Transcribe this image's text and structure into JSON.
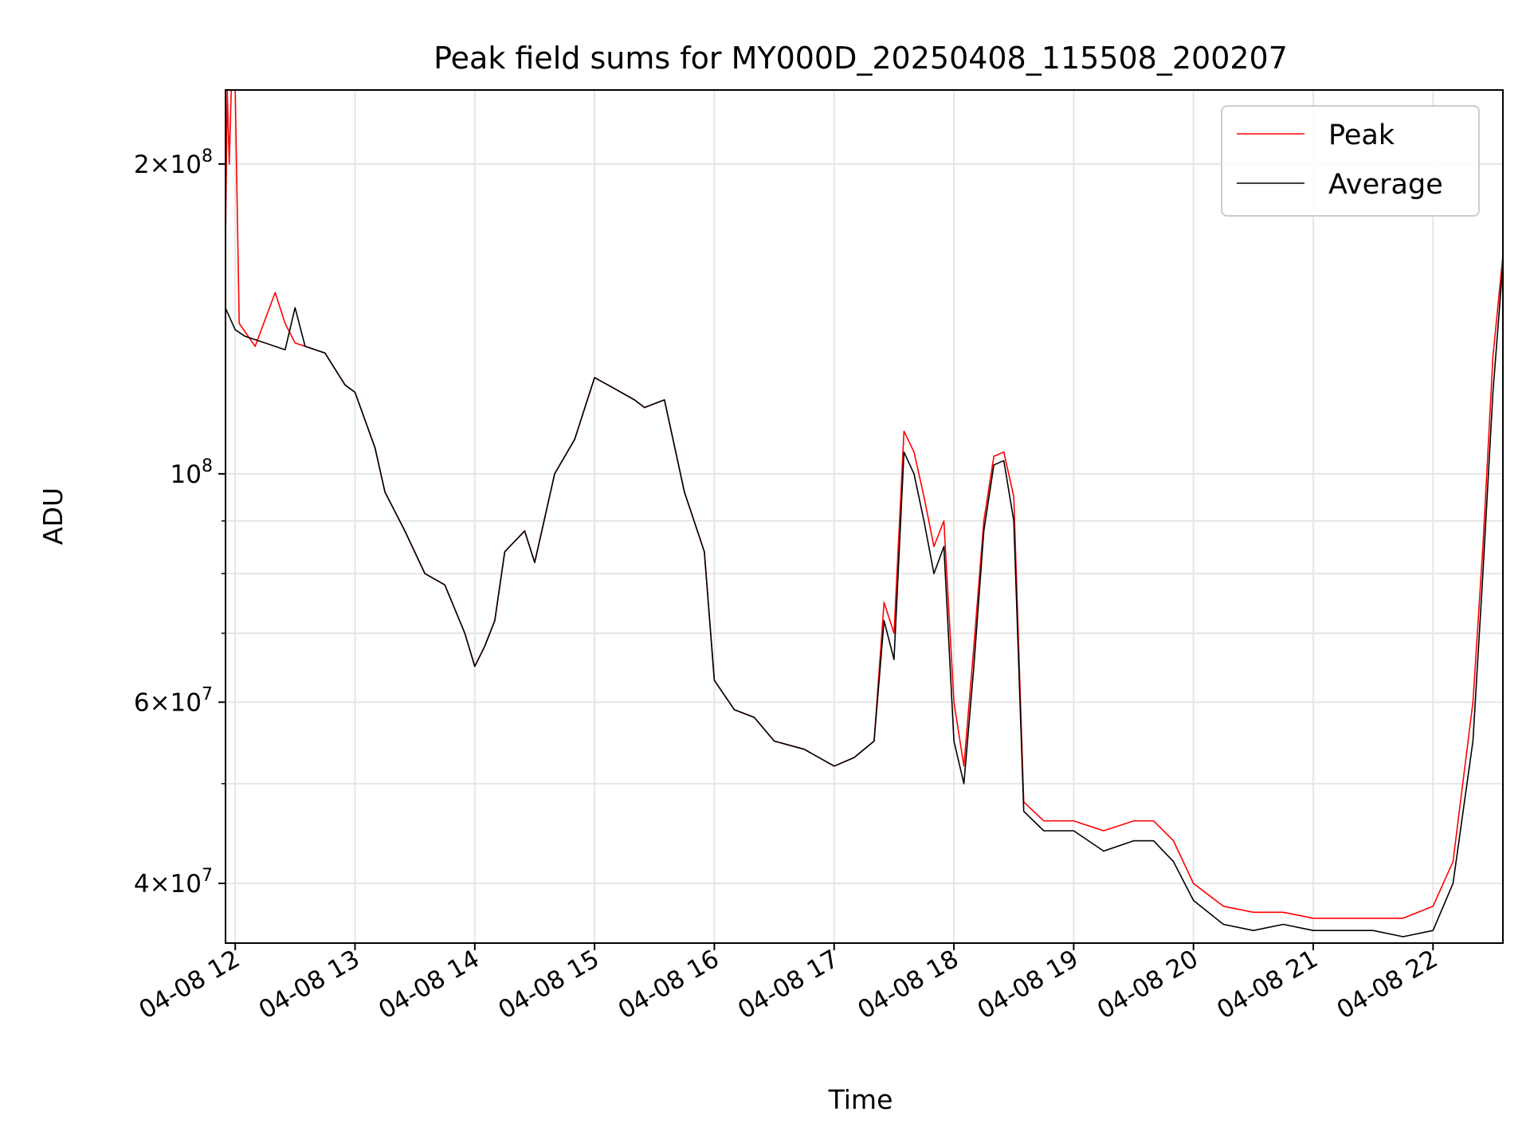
{
  "chart_data": {
    "type": "line",
    "title": "Peak field sums for MY000D_20250408_115508_200207",
    "xlabel": "Time",
    "ylabel": "ADU",
    "y_scale": "log",
    "xlim": [
      "2025-04-08 11:55:08",
      "2025-04-08 22:35:00"
    ],
    "ylim": [
      35000000,
      236000000
    ],
    "grid": true,
    "legend_position": "top-right",
    "x_ticks": [
      "04-08 12",
      "04-08 13",
      "04-08 14",
      "04-08 15",
      "04-08 16",
      "04-08 17",
      "04-08 18",
      "04-08 19",
      "04-08 20",
      "04-08 21",
      "04-08 22"
    ],
    "y_ticks": [
      {
        "value": 40000000,
        "mantissa": "4",
        "exponent": "7"
      },
      {
        "value": 60000000,
        "mantissa": "6",
        "exponent": "7"
      },
      {
        "value": 100000000,
        "mantissa": "",
        "exponent": "8"
      },
      {
        "value": 200000000,
        "mantissa": "2",
        "exponent": "8"
      }
    ],
    "series": [
      {
        "name": "Peak",
        "color": "#ff0000",
        "x": [
          "2025-04-08 11:55",
          "2025-04-08 11:56",
          "2025-04-08 11:57",
          "2025-04-08 11:58",
          "2025-04-08 11:59",
          "2025-04-08 12:00",
          "2025-04-08 12:02",
          "2025-04-08 12:10",
          "2025-04-08 12:20",
          "2025-04-08 12:25",
          "2025-04-08 12:30",
          "2025-04-08 12:35",
          "2025-04-08 12:45",
          "2025-04-08 12:55",
          "2025-04-08 13:00",
          "2025-04-08 13:10",
          "2025-04-08 13:15",
          "2025-04-08 13:25",
          "2025-04-08 13:35",
          "2025-04-08 13:45",
          "2025-04-08 13:55",
          "2025-04-08 14:00",
          "2025-04-08 14:05",
          "2025-04-08 14:10",
          "2025-04-08 14:15",
          "2025-04-08 14:25",
          "2025-04-08 14:30",
          "2025-04-08 14:40",
          "2025-04-08 14:50",
          "2025-04-08 15:00",
          "2025-04-08 15:10",
          "2025-04-08 15:20",
          "2025-04-08 15:25",
          "2025-04-08 15:35",
          "2025-04-08 15:45",
          "2025-04-08 15:55",
          "2025-04-08 16:00",
          "2025-04-08 16:10",
          "2025-04-08 16:20",
          "2025-04-08 16:30",
          "2025-04-08 16:45",
          "2025-04-08 17:00",
          "2025-04-08 17:10",
          "2025-04-08 17:20",
          "2025-04-08 17:25",
          "2025-04-08 17:30",
          "2025-04-08 17:35",
          "2025-04-08 17:40",
          "2025-04-08 17:45",
          "2025-04-08 17:50",
          "2025-04-08 17:55",
          "2025-04-08 18:00",
          "2025-04-08 18:05",
          "2025-04-08 18:10",
          "2025-04-08 18:15",
          "2025-04-08 18:20",
          "2025-04-08 18:25",
          "2025-04-08 18:30",
          "2025-04-08 18:35",
          "2025-04-08 18:45",
          "2025-04-08 19:00",
          "2025-04-08 19:15",
          "2025-04-08 19:30",
          "2025-04-08 19:40",
          "2025-04-08 19:50",
          "2025-04-08 20:00",
          "2025-04-08 20:15",
          "2025-04-08 20:30",
          "2025-04-08 20:45",
          "2025-04-08 21:00",
          "2025-04-08 21:15",
          "2025-04-08 21:30",
          "2025-04-08 21:45",
          "2025-04-08 22:00",
          "2025-04-08 22:10",
          "2025-04-08 22:20",
          "2025-04-08 22:25",
          "2025-04-08 22:30",
          "2025-04-08 22:35"
        ],
        "y": [
          160000000,
          236000000,
          200000000,
          236000000,
          236000000,
          236000000,
          140000000,
          133000000,
          150000000,
          140000000,
          134000000,
          133000000,
          131000000,
          122000000,
          120000000,
          106000000,
          96000000,
          88000000,
          80000000,
          78000000,
          70000000,
          65000000,
          68000000,
          72000000,
          84000000,
          88000000,
          82000000,
          100000000,
          108000000,
          124000000,
          121000000,
          118000000,
          116000000,
          118000000,
          96000000,
          84000000,
          63000000,
          59000000,
          58000000,
          55000000,
          54000000,
          52000000,
          53000000,
          55000000,
          75000000,
          70000000,
          110000000,
          105000000,
          95000000,
          85000000,
          90000000,
          60000000,
          52000000,
          68000000,
          90000000,
          104000000,
          105000000,
          95000000,
          48000000,
          46000000,
          46000000,
          45000000,
          46000000,
          46000000,
          44000000,
          40000000,
          38000000,
          37500000,
          37500000,
          37000000,
          37000000,
          37000000,
          37000000,
          38000000,
          42000000,
          60000000,
          85000000,
          130000000,
          163000000
        ]
      },
      {
        "name": "Average",
        "color": "#000000",
        "x": [
          "2025-04-08 11:55",
          "2025-04-08 12:00",
          "2025-04-08 12:05",
          "2025-04-08 12:15",
          "2025-04-08 12:25",
          "2025-04-08 12:30",
          "2025-04-08 12:35",
          "2025-04-08 12:45",
          "2025-04-08 12:55",
          "2025-04-08 13:00",
          "2025-04-08 13:10",
          "2025-04-08 13:15",
          "2025-04-08 13:25",
          "2025-04-08 13:35",
          "2025-04-08 13:45",
          "2025-04-08 13:55",
          "2025-04-08 14:00",
          "2025-04-08 14:05",
          "2025-04-08 14:10",
          "2025-04-08 14:15",
          "2025-04-08 14:25",
          "2025-04-08 14:30",
          "2025-04-08 14:40",
          "2025-04-08 14:50",
          "2025-04-08 15:00",
          "2025-04-08 15:10",
          "2025-04-08 15:20",
          "2025-04-08 15:25",
          "2025-04-08 15:35",
          "2025-04-08 15:45",
          "2025-04-08 15:55",
          "2025-04-08 16:00",
          "2025-04-08 16:10",
          "2025-04-08 16:20",
          "2025-04-08 16:30",
          "2025-04-08 16:45",
          "2025-04-08 17:00",
          "2025-04-08 17:10",
          "2025-04-08 17:20",
          "2025-04-08 17:25",
          "2025-04-08 17:30",
          "2025-04-08 17:35",
          "2025-04-08 17:40",
          "2025-04-08 17:45",
          "2025-04-08 17:50",
          "2025-04-08 17:55",
          "2025-04-08 18:00",
          "2025-04-08 18:05",
          "2025-04-08 18:10",
          "2025-04-08 18:15",
          "2025-04-08 18:20",
          "2025-04-08 18:25",
          "2025-04-08 18:30",
          "2025-04-08 18:35",
          "2025-04-08 18:45",
          "2025-04-08 19:00",
          "2025-04-08 19:15",
          "2025-04-08 19:30",
          "2025-04-08 19:40",
          "2025-04-08 19:50",
          "2025-04-08 20:00",
          "2025-04-08 20:15",
          "2025-04-08 20:30",
          "2025-04-08 20:45",
          "2025-04-08 21:00",
          "2025-04-08 21:15",
          "2025-04-08 21:30",
          "2025-04-08 21:45",
          "2025-04-08 22:00",
          "2025-04-08 22:10",
          "2025-04-08 22:20",
          "2025-04-08 22:25",
          "2025-04-08 22:30",
          "2025-04-08 22:35"
        ],
        "y": [
          145000000,
          138000000,
          136000000,
          134000000,
          132000000,
          145000000,
          133000000,
          131000000,
          122000000,
          120000000,
          106000000,
          96000000,
          88000000,
          80000000,
          78000000,
          70000000,
          65000000,
          68000000,
          72000000,
          84000000,
          88000000,
          82000000,
          100000000,
          108000000,
          124000000,
          121000000,
          118000000,
          116000000,
          118000000,
          96000000,
          84000000,
          63000000,
          59000000,
          58000000,
          55000000,
          54000000,
          52000000,
          53000000,
          55000000,
          72000000,
          66000000,
          105000000,
          100000000,
          90000000,
          80000000,
          85000000,
          55000000,
          50000000,
          65000000,
          88000000,
          102000000,
          103000000,
          90000000,
          47000000,
          45000000,
          45000000,
          43000000,
          44000000,
          44000000,
          42000000,
          38500000,
          36500000,
          36000000,
          36500000,
          36000000,
          36000000,
          36000000,
          35500000,
          36000000,
          40000000,
          55000000,
          80000000,
          120000000,
          160000000
        ]
      }
    ]
  }
}
